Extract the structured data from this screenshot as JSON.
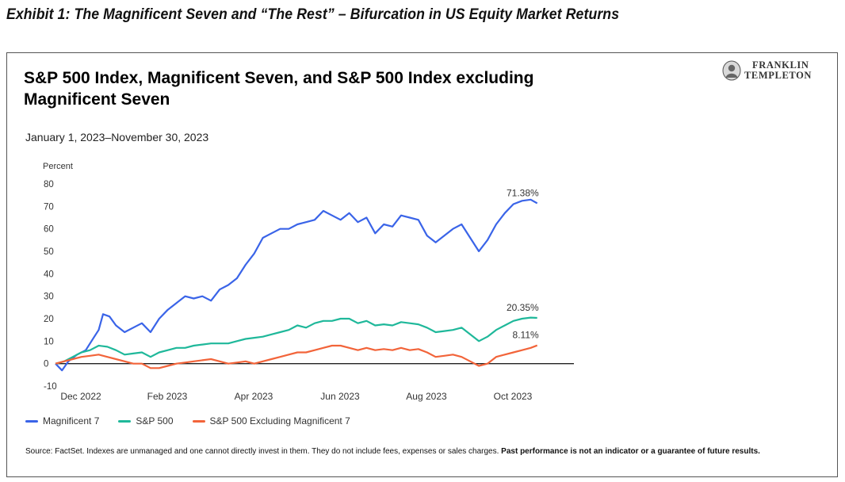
{
  "exhibit_title": "Exhibit 1: The Magnificent Seven and “The Rest” – Bifurcation in US Equity Market Returns",
  "logo": {
    "line1": "FRANKLIN",
    "line2": "TEMPLETON"
  },
  "footnote": {
    "text": "Source: FactSet. Indexes are unmanaged and one cannot directly invest in them. They do not include fees, expenses or sales charges. ",
    "bold": "Past performance is not an indicator or a guarantee of future results."
  },
  "chart_data": {
    "type": "line",
    "title": "S&P 500 Index, Magnificent Seven, and S&P 500 Index excluding Magnificent Seven",
    "subtitle": "January 1, 2023–November 30, 2023",
    "ylabel": "Percent",
    "ylim": [
      -10,
      80
    ],
    "yticks": [
      80,
      70,
      60,
      50,
      40,
      30,
      20,
      10,
      0,
      -10
    ],
    "xlim": [
      0,
      12
    ],
    "xticks": [
      {
        "x": 0,
        "label": "Dec 2022"
      },
      {
        "x": 2,
        "label": "Feb 2023"
      },
      {
        "x": 4,
        "label": "Apr 2023"
      },
      {
        "x": 6,
        "label": "Jun 2023"
      },
      {
        "x": 8,
        "label": "Aug 2023"
      },
      {
        "x": 10,
        "label": "Oct 2023"
      }
    ],
    "grid": false,
    "legend_position": "bottom-left",
    "series": [
      {
        "name": "Magnificent 7",
        "color": "#3a64e8",
        "end_label": "71.38%",
        "points": [
          [
            0,
            0
          ],
          [
            0.15,
            -3
          ],
          [
            0.3,
            1
          ],
          [
            0.5,
            4
          ],
          [
            0.7,
            6
          ],
          [
            0.9,
            12
          ],
          [
            1.0,
            15
          ],
          [
            1.1,
            22
          ],
          [
            1.25,
            21
          ],
          [
            1.4,
            17
          ],
          [
            1.6,
            14
          ],
          [
            1.8,
            16
          ],
          [
            2.0,
            18
          ],
          [
            2.2,
            14
          ],
          [
            2.4,
            20
          ],
          [
            2.6,
            24
          ],
          [
            2.8,
            27
          ],
          [
            3.0,
            30
          ],
          [
            3.2,
            29
          ],
          [
            3.4,
            30
          ],
          [
            3.6,
            28
          ],
          [
            3.8,
            33
          ],
          [
            4.0,
            35
          ],
          [
            4.2,
            38
          ],
          [
            4.4,
            44
          ],
          [
            4.6,
            49
          ],
          [
            4.8,
            56
          ],
          [
            5.0,
            58
          ],
          [
            5.2,
            60
          ],
          [
            5.4,
            60
          ],
          [
            5.6,
            62
          ],
          [
            5.8,
            63
          ],
          [
            6.0,
            64
          ],
          [
            6.2,
            68
          ],
          [
            6.4,
            66
          ],
          [
            6.6,
            64
          ],
          [
            6.8,
            67
          ],
          [
            7.0,
            63
          ],
          [
            7.2,
            65
          ],
          [
            7.4,
            58
          ],
          [
            7.6,
            62
          ],
          [
            7.8,
            61
          ],
          [
            8.0,
            66
          ],
          [
            8.2,
            65
          ],
          [
            8.4,
            64
          ],
          [
            8.6,
            57
          ],
          [
            8.8,
            54
          ],
          [
            9.0,
            57
          ],
          [
            9.2,
            60
          ],
          [
            9.4,
            62
          ],
          [
            9.6,
            56
          ],
          [
            9.8,
            50
          ],
          [
            10.0,
            55
          ],
          [
            10.2,
            62
          ],
          [
            10.4,
            67
          ],
          [
            10.6,
            71
          ],
          [
            10.8,
            72.5
          ],
          [
            11.0,
            73
          ],
          [
            11.15,
            71.38
          ]
        ]
      },
      {
        "name": "S&P 500",
        "color": "#1fb89a",
        "end_label": "20.35%",
        "points": [
          [
            0,
            0
          ],
          [
            0.2,
            1
          ],
          [
            0.4,
            3
          ],
          [
            0.6,
            5
          ],
          [
            0.8,
            6
          ],
          [
            1.0,
            8
          ],
          [
            1.2,
            7.5
          ],
          [
            1.4,
            6
          ],
          [
            1.6,
            4
          ],
          [
            1.8,
            4.5
          ],
          [
            2.0,
            5
          ],
          [
            2.2,
            3
          ],
          [
            2.4,
            5
          ],
          [
            2.6,
            6
          ],
          [
            2.8,
            7
          ],
          [
            3.0,
            7
          ],
          [
            3.2,
            8
          ],
          [
            3.4,
            8.5
          ],
          [
            3.6,
            9
          ],
          [
            3.8,
            9
          ],
          [
            4.0,
            9
          ],
          [
            4.2,
            10
          ],
          [
            4.4,
            11
          ],
          [
            4.6,
            11.5
          ],
          [
            4.8,
            12
          ],
          [
            5.0,
            13
          ],
          [
            5.2,
            14
          ],
          [
            5.4,
            15
          ],
          [
            5.6,
            17
          ],
          [
            5.8,
            16
          ],
          [
            6.0,
            18
          ],
          [
            6.2,
            19
          ],
          [
            6.4,
            19
          ],
          [
            6.6,
            20
          ],
          [
            6.8,
            20
          ],
          [
            7.0,
            18
          ],
          [
            7.2,
            19
          ],
          [
            7.4,
            17
          ],
          [
            7.6,
            17.5
          ],
          [
            7.8,
            17
          ],
          [
            8.0,
            18.5
          ],
          [
            8.2,
            18
          ],
          [
            8.4,
            17.5
          ],
          [
            8.6,
            16
          ],
          [
            8.8,
            14
          ],
          [
            9.0,
            14.5
          ],
          [
            9.2,
            15
          ],
          [
            9.4,
            16
          ],
          [
            9.6,
            13
          ],
          [
            9.8,
            10
          ],
          [
            10.0,
            12
          ],
          [
            10.2,
            15
          ],
          [
            10.4,
            17
          ],
          [
            10.6,
            19
          ],
          [
            10.8,
            20
          ],
          [
            11.0,
            20.5
          ],
          [
            11.15,
            20.35
          ]
        ]
      },
      {
        "name": "S&P 500 Excluding Magnificent 7",
        "color": "#f2643a",
        "end_label": "8.11%",
        "points": [
          [
            0,
            0
          ],
          [
            0.2,
            1
          ],
          [
            0.4,
            2
          ],
          [
            0.6,
            3
          ],
          [
            0.8,
            3.5
          ],
          [
            1.0,
            4
          ],
          [
            1.2,
            3
          ],
          [
            1.4,
            2
          ],
          [
            1.6,
            1
          ],
          [
            1.8,
            0
          ],
          [
            2.0,
            0
          ],
          [
            2.2,
            -2
          ],
          [
            2.4,
            -2
          ],
          [
            2.6,
            -1
          ],
          [
            2.8,
            0
          ],
          [
            3.0,
            0.5
          ],
          [
            3.2,
            1
          ],
          [
            3.4,
            1.5
          ],
          [
            3.6,
            2
          ],
          [
            3.8,
            1
          ],
          [
            4.0,
            0
          ],
          [
            4.2,
            0.5
          ],
          [
            4.4,
            1
          ],
          [
            4.6,
            0
          ],
          [
            4.8,
            1
          ],
          [
            5.0,
            2
          ],
          [
            5.2,
            3
          ],
          [
            5.4,
            4
          ],
          [
            5.6,
            5
          ],
          [
            5.8,
            5
          ],
          [
            6.0,
            6
          ],
          [
            6.2,
            7
          ],
          [
            6.4,
            8
          ],
          [
            6.6,
            8
          ],
          [
            6.8,
            7
          ],
          [
            7.0,
            6
          ],
          [
            7.2,
            7
          ],
          [
            7.4,
            6
          ],
          [
            7.6,
            6.5
          ],
          [
            7.8,
            6
          ],
          [
            8.0,
            7
          ],
          [
            8.2,
            6
          ],
          [
            8.4,
            6.5
          ],
          [
            8.6,
            5
          ],
          [
            8.8,
            3
          ],
          [
            9.0,
            3.5
          ],
          [
            9.2,
            4
          ],
          [
            9.4,
            3
          ],
          [
            9.6,
            1
          ],
          [
            9.8,
            -1
          ],
          [
            10.0,
            0
          ],
          [
            10.2,
            3
          ],
          [
            10.4,
            4
          ],
          [
            10.6,
            5
          ],
          [
            10.8,
            6
          ],
          [
            11.0,
            7
          ],
          [
            11.15,
            8.11
          ]
        ]
      }
    ]
  }
}
